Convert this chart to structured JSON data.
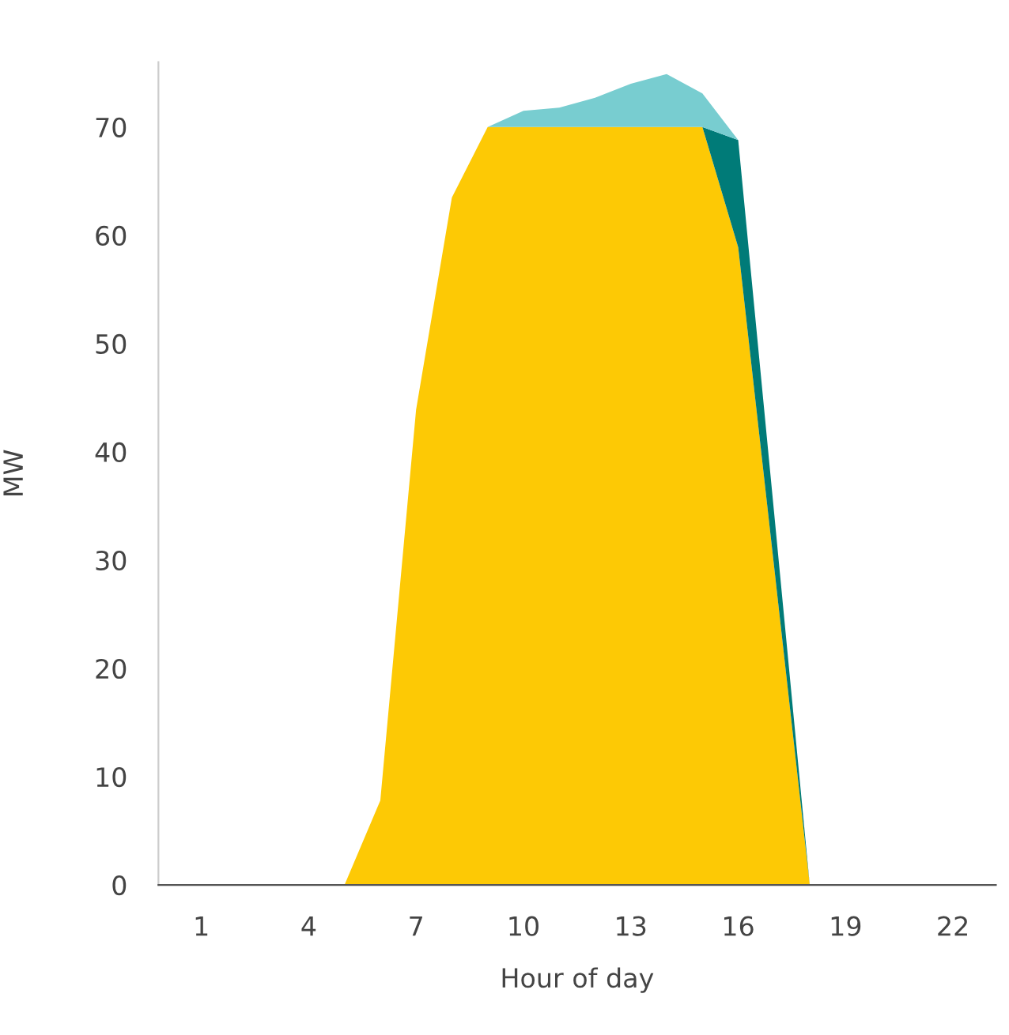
{
  "chart_data": {
    "type": "area",
    "stacked": true,
    "xlabel": "Hour of day",
    "ylabel": "MW",
    "x": [
      0,
      1,
      2,
      3,
      4,
      5,
      6,
      7,
      8,
      9,
      10,
      11,
      12,
      13,
      14,
      15,
      16,
      17,
      18,
      19,
      20,
      21,
      22,
      23
    ],
    "xlim": [
      -0.2,
      23.2
    ],
    "xticks": [
      1,
      4,
      7,
      10,
      13,
      16,
      19,
      22
    ],
    "ylim": [
      0,
      76
    ],
    "yticks": [
      0,
      10,
      20,
      30,
      40,
      50,
      60,
      70
    ],
    "series": [
      {
        "color": "#fdc905",
        "values": [
          0,
          0,
          0,
          0,
          0,
          0,
          7.8,
          43.9,
          63.5,
          70,
          70,
          70,
          70,
          70,
          70,
          70,
          58.9,
          29.5,
          0,
          0,
          0,
          0,
          0,
          0
        ]
      },
      {
        "color": "#007b78",
        "values": [
          null,
          null,
          null,
          null,
          null,
          null,
          null,
          null,
          null,
          null,
          null,
          null,
          null,
          null,
          null,
          0,
          9.9,
          5,
          0,
          null,
          null,
          null,
          null,
          null
        ]
      },
      {
        "color": "#78cdd0",
        "values": [
          null,
          null,
          null,
          null,
          null,
          null,
          null,
          null,
          null,
          0,
          1.5,
          1.8,
          2.7,
          4,
          4.9,
          3.1,
          0,
          null,
          null,
          null,
          null,
          null,
          null,
          null
        ]
      }
    ]
  }
}
